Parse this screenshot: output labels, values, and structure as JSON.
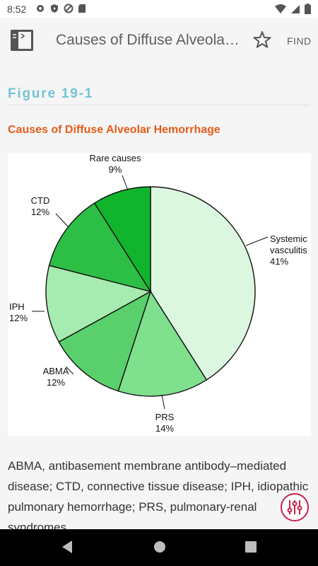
{
  "status_bar": {
    "time": "8:52",
    "left_icons": [
      "gear-icon",
      "play-protect-icon",
      "blocked-icon",
      "sd-card-icon"
    ],
    "right_icons": [
      "wifi-icon",
      "signal-icon",
      "battery-icon"
    ]
  },
  "app_bar": {
    "book_icon": "book-icon",
    "title": "Causes of Diffuse Alveolar Hemorrhage",
    "bookmark_icon": "star-outline-icon",
    "find_label": "FIND"
  },
  "figure": {
    "label": "Figure 19-1",
    "title": "Causes of Diffuse Alveolar Hemorrhage"
  },
  "chart_data": {
    "type": "pie",
    "title": "",
    "slices": [
      {
        "label": "Systemic vasculitis",
        "label_lines": [
          "Systemic",
          "vasculitis"
        ],
        "percent_text": "41%",
        "value": 41,
        "color": "#dcf7df"
      },
      {
        "label": "PRS",
        "label_lines": [
          "PRS"
        ],
        "percent_text": "14%",
        "value": 14,
        "color": "#7fe08d"
      },
      {
        "label": "ABMA",
        "label_lines": [
          "ABMA"
        ],
        "percent_text": "12%",
        "value": 12,
        "color": "#5ad06d"
      },
      {
        "label": "IPH",
        "label_lines": [
          "IPH"
        ],
        "percent_text": "12%",
        "value": 12,
        "color": "#a6ebaf"
      },
      {
        "label": "CTD",
        "label_lines": [
          "CTD"
        ],
        "percent_text": "12%",
        "value": 12,
        "color": "#2dbe46"
      },
      {
        "label": "Rare causes",
        "label_lines": [
          "Rare causes"
        ],
        "percent_text": "9%",
        "value": 9,
        "color": "#11b52d"
      }
    ]
  },
  "caption": "ABMA, antibasement membrane antibody–mediated disease; CTD, connective tissue disease; IPH, idiopathic pulmonary hemorrhage; PRS, pulmonary-renal syndromes.",
  "fab": {
    "icon": "sliders-icon"
  },
  "nav_bar": {
    "back": "back-icon",
    "home": "home-icon",
    "recents": "recents-icon"
  },
  "colors": {
    "figure_label": "#74c3d3",
    "figure_title": "#e65c1a",
    "fab_accent": "#c9234a"
  }
}
